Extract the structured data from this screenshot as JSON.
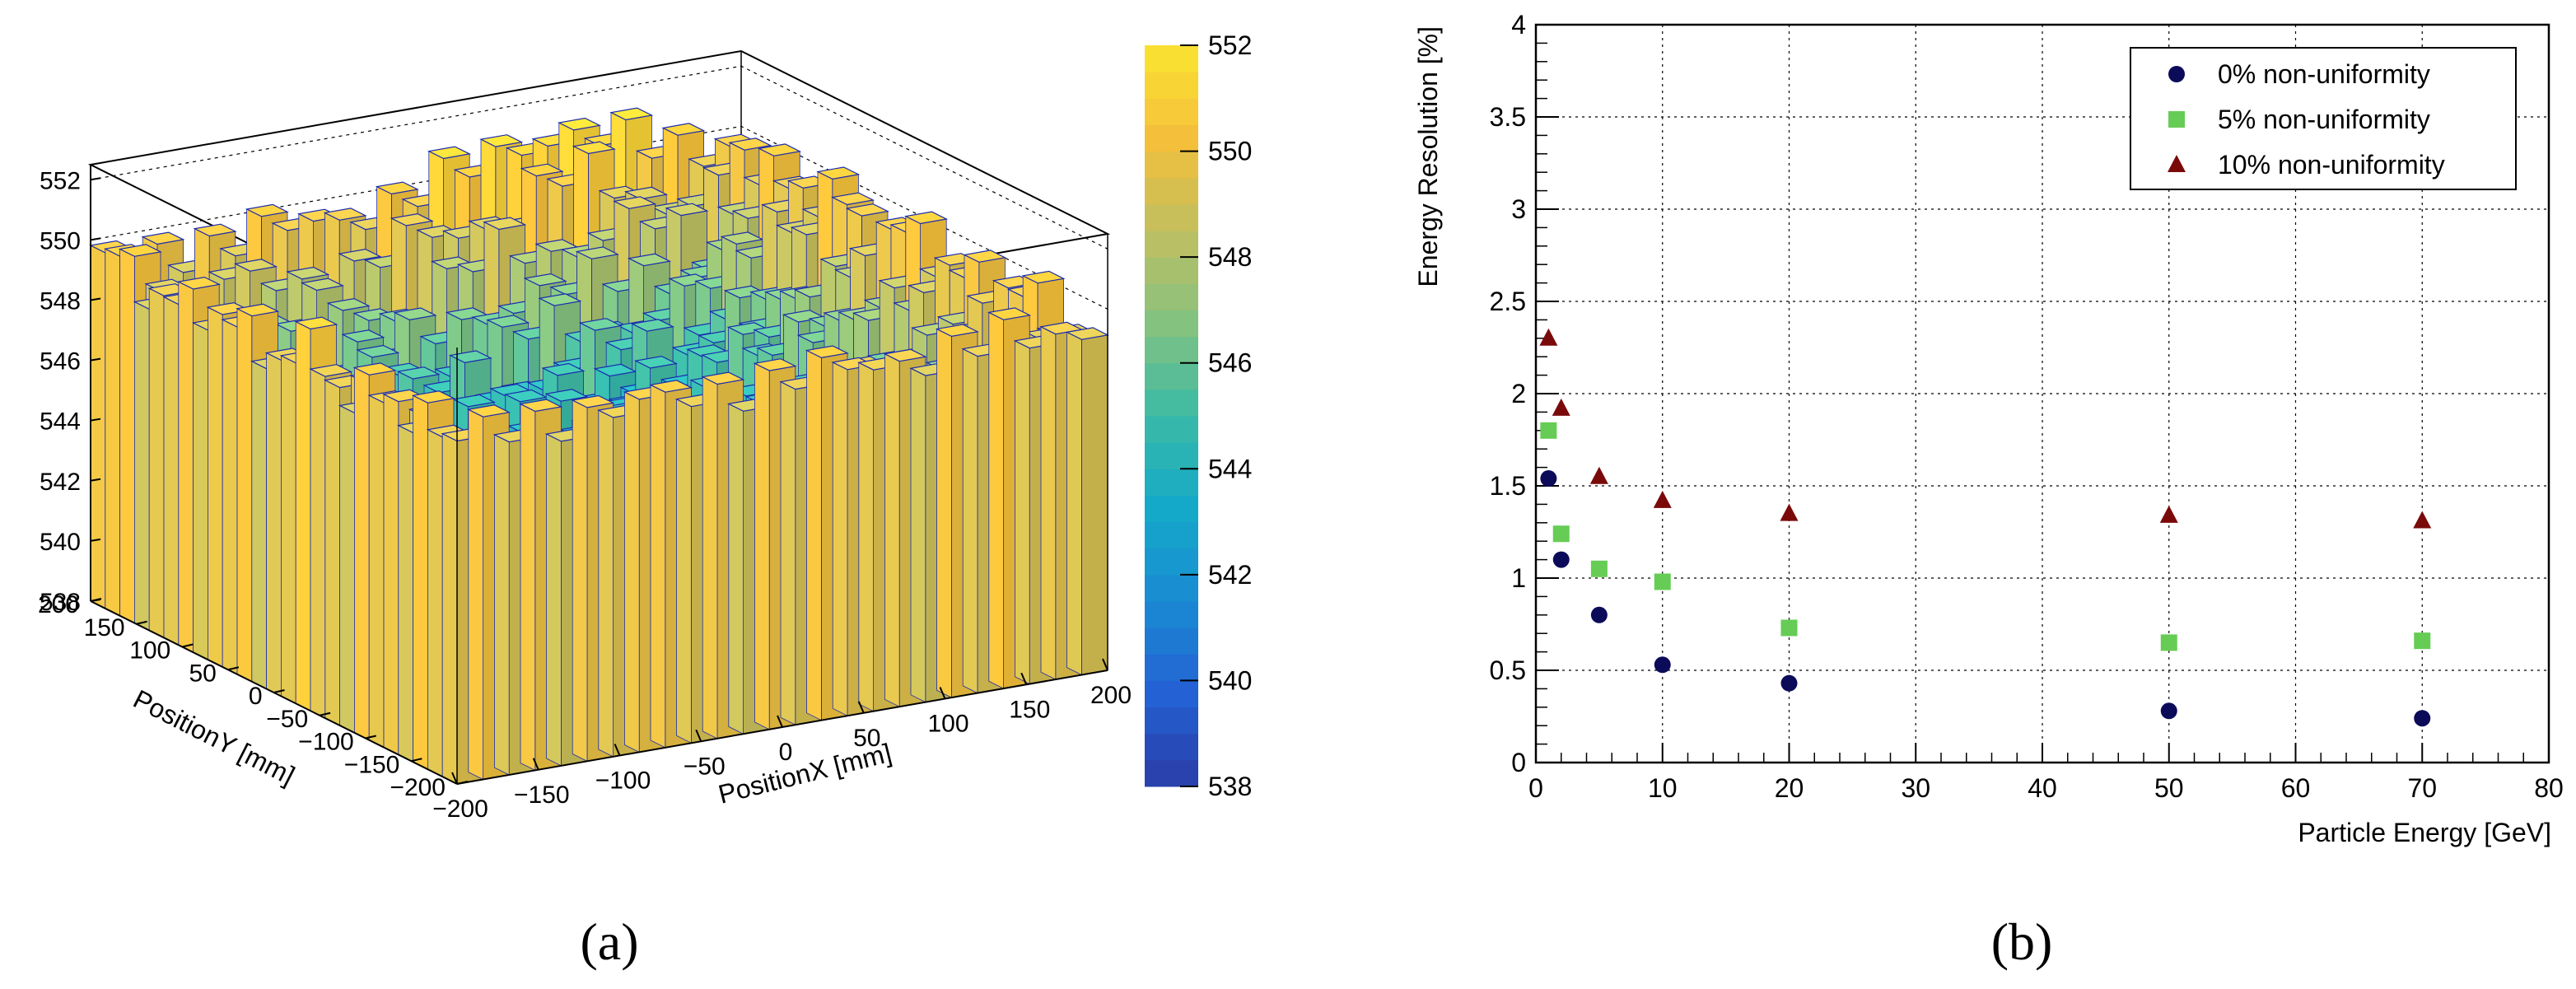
{
  "panel_labels": {
    "a": "(a)",
    "b": "(b)"
  },
  "chart_data": [
    {
      "panel": "a",
      "type": "lego3d",
      "xlabel": "PositionX [mm]",
      "ylabel": "PositionY [mm]",
      "x_ticks": [
        -200,
        -150,
        -100,
        -50,
        0,
        50,
        100,
        150,
        200
      ],
      "y_ticks": [
        -200,
        -150,
        -100,
        -50,
        0,
        50,
        100,
        150,
        200
      ],
      "z_ticks": [
        538,
        540,
        542,
        544,
        546,
        548,
        550,
        552
      ],
      "xlim": [
        -200,
        200
      ],
      "ylim": [
        -200,
        200
      ],
      "zlim": [
        538,
        552.5
      ],
      "colorbar": {
        "ticks": [
          538,
          540,
          542,
          544,
          546,
          548,
          550,
          552
        ],
        "range": [
          538,
          552
        ]
      },
      "nbins_x": 25,
      "nbins_y": 25,
      "z_edge": 550.3,
      "z_center_min": 543.6,
      "z_peak": 552.1,
      "z_peak_at": [
        80,
        180
      ],
      "cell_colors": {
        "edge": "#1a2bb0"
      },
      "palette": [
        "#2a3da6",
        "#2461d4",
        "#1a8bd3",
        "#14a9c9",
        "#3bbaa6",
        "#84c27f",
        "#c2bf5f",
        "#f4bf3a",
        "#fbe432"
      ]
    },
    {
      "panel": "b",
      "type": "scatter",
      "xlabel": "Particle Energy [GeV]",
      "ylabel": "Energy Resolution [%]",
      "xlim": [
        0,
        80
      ],
      "ylim": [
        0,
        4
      ],
      "x_ticks": [
        0,
        10,
        20,
        30,
        40,
        50,
        60,
        70,
        80
      ],
      "y_ticks": [
        "0",
        "0.5",
        "1",
        "1.5",
        "2",
        "2.5",
        "3",
        "3.5",
        "4"
      ],
      "grid": true,
      "legend": "top-right",
      "series": [
        {
          "name": "0% non-uniformity",
          "marker": "circle",
          "color": "#0b0b5a",
          "x": [
            1,
            2,
            5,
            10,
            20,
            50,
            70
          ],
          "y": [
            1.54,
            1.1,
            0.8,
            0.53,
            0.43,
            0.28,
            0.24
          ]
        },
        {
          "name": "5% non-uniformity",
          "marker": "square",
          "color": "#66cc55",
          "x": [
            1,
            2,
            5,
            10,
            20,
            50,
            70
          ],
          "y": [
            1.8,
            1.24,
            1.05,
            0.98,
            0.73,
            0.65,
            0.66
          ]
        },
        {
          "name": "10% non-uniformity",
          "marker": "triangle",
          "color": "#7a0a0a",
          "x": [
            1,
            2,
            5,
            10,
            20,
            50,
            70
          ],
          "y": [
            2.3,
            1.92,
            1.55,
            1.42,
            1.35,
            1.34,
            1.31
          ]
        }
      ]
    }
  ]
}
